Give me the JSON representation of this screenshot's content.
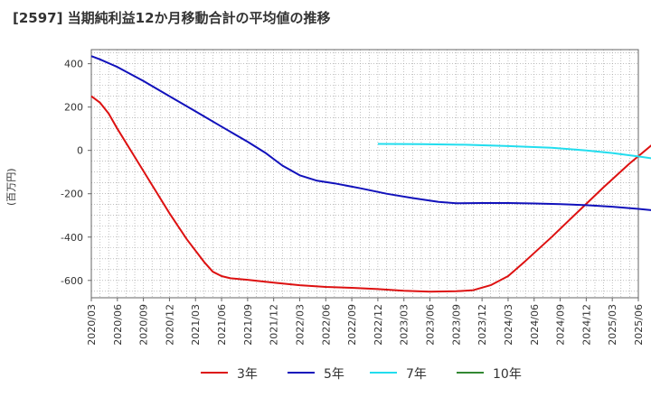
{
  "chart_data": {
    "type": "line",
    "title": "[2597]  当期純利益12か月移動合計の平均値の推移",
    "ylabel": "(百万円)",
    "xlabel": "",
    "ylim": [
      -680,
      465
    ],
    "yticks": [
      400,
      200,
      0,
      -200,
      -400,
      -600
    ],
    "x_tick_labels": [
      "2020/03",
      "2020/06",
      "2020/09",
      "2020/12",
      "2021/03",
      "2021/06",
      "2021/09",
      "2021/12",
      "2022/03",
      "2022/06",
      "2022/09",
      "2022/12",
      "2023/03",
      "2023/06",
      "2023/09",
      "2023/12",
      "2024/03",
      "2024/06",
      "2024/09",
      "2024/12",
      "2025/03",
      "2025/06"
    ],
    "grid": true,
    "series": [
      {
        "name": "3年",
        "color": "#dd1111",
        "points": [
          [
            0,
            250
          ],
          [
            1,
            220
          ],
          [
            2,
            170
          ],
          [
            3,
            100
          ],
          [
            5,
            -30
          ],
          [
            7,
            -160
          ],
          [
            9,
            -290
          ],
          [
            11,
            -410
          ],
          [
            13,
            -515
          ],
          [
            14,
            -560
          ],
          [
            15,
            -580
          ],
          [
            16,
            -590
          ],
          [
            18,
            -597
          ],
          [
            21,
            -610
          ],
          [
            24,
            -622
          ],
          [
            27,
            -630
          ],
          [
            30,
            -634
          ],
          [
            33,
            -640
          ],
          [
            36,
            -648
          ],
          [
            39,
            -652
          ],
          [
            42,
            -650
          ],
          [
            44,
            -645
          ],
          [
            46,
            -622
          ],
          [
            48,
            -580
          ],
          [
            50,
            -510
          ],
          [
            53,
            -400
          ],
          [
            56,
            -285
          ],
          [
            59,
            -170
          ],
          [
            62,
            -60
          ],
          [
            65,
            40
          ],
          [
            66,
            100
          ],
          [
            68,
            150
          ],
          [
            70,
            180
          ],
          [
            73,
            192
          ],
          [
            76,
            208
          ],
          [
            79,
            220
          ],
          [
            82,
            230
          ],
          [
            85,
            238
          ]
        ]
      },
      {
        "name": "5年",
        "color": "#1111bb",
        "points": [
          [
            0,
            435
          ],
          [
            1,
            420
          ],
          [
            3,
            385
          ],
          [
            6,
            320
          ],
          [
            9,
            250
          ],
          [
            12,
            180
          ],
          [
            15,
            110
          ],
          [
            18,
            40
          ],
          [
            20,
            -10
          ],
          [
            22,
            -70
          ],
          [
            24,
            -115
          ],
          [
            26,
            -140
          ],
          [
            28,
            -152
          ],
          [
            31,
            -175
          ],
          [
            34,
            -200
          ],
          [
            37,
            -220
          ],
          [
            40,
            -238
          ],
          [
            42,
            -244
          ],
          [
            45,
            -243
          ],
          [
            48,
            -243
          ],
          [
            51,
            -245
          ],
          [
            54,
            -248
          ],
          [
            57,
            -253
          ],
          [
            60,
            -260
          ],
          [
            63,
            -270
          ],
          [
            66,
            -282
          ],
          [
            70,
            -295
          ],
          [
            74,
            -308
          ],
          [
            78,
            -317
          ],
          [
            82,
            -322
          ],
          [
            86,
            -325
          ],
          [
            92,
            -327
          ],
          [
            98,
            -326
          ],
          [
            104,
            -320
          ],
          [
            108,
            -315
          ],
          [
            112,
            -305
          ],
          [
            116,
            -290
          ],
          [
            120,
            -272
          ],
          [
            122,
            -257
          ]
        ]
      },
      {
        "name": "7年",
        "color": "#22ddee",
        "points": [
          [
            33,
            30
          ],
          [
            38,
            29
          ],
          [
            43,
            26
          ],
          [
            48,
            20
          ],
          [
            53,
            12
          ],
          [
            57,
            0
          ],
          [
            60,
            -12
          ],
          [
            63,
            -28
          ],
          [
            66,
            -45
          ],
          [
            69,
            -62
          ],
          [
            72,
            -80
          ],
          [
            75,
            -95
          ],
          [
            78,
            -108
          ],
          [
            81,
            -118
          ],
          [
            84,
            -127
          ],
          [
            87,
            -134
          ],
          [
            90,
            -137
          ],
          [
            94,
            -137
          ],
          [
            98,
            -135
          ],
          [
            102,
            -131
          ],
          [
            106,
            -127
          ],
          [
            110,
            -124
          ],
          [
            114,
            -121
          ],
          [
            118,
            -118
          ],
          [
            122,
            -115
          ]
        ]
      },
      {
        "name": "10年",
        "color": "#338833",
        "points": [
          [
            121,
            90
          ],
          [
            122,
            92
          ],
          [
            123,
            93
          ]
        ]
      }
    ]
  }
}
